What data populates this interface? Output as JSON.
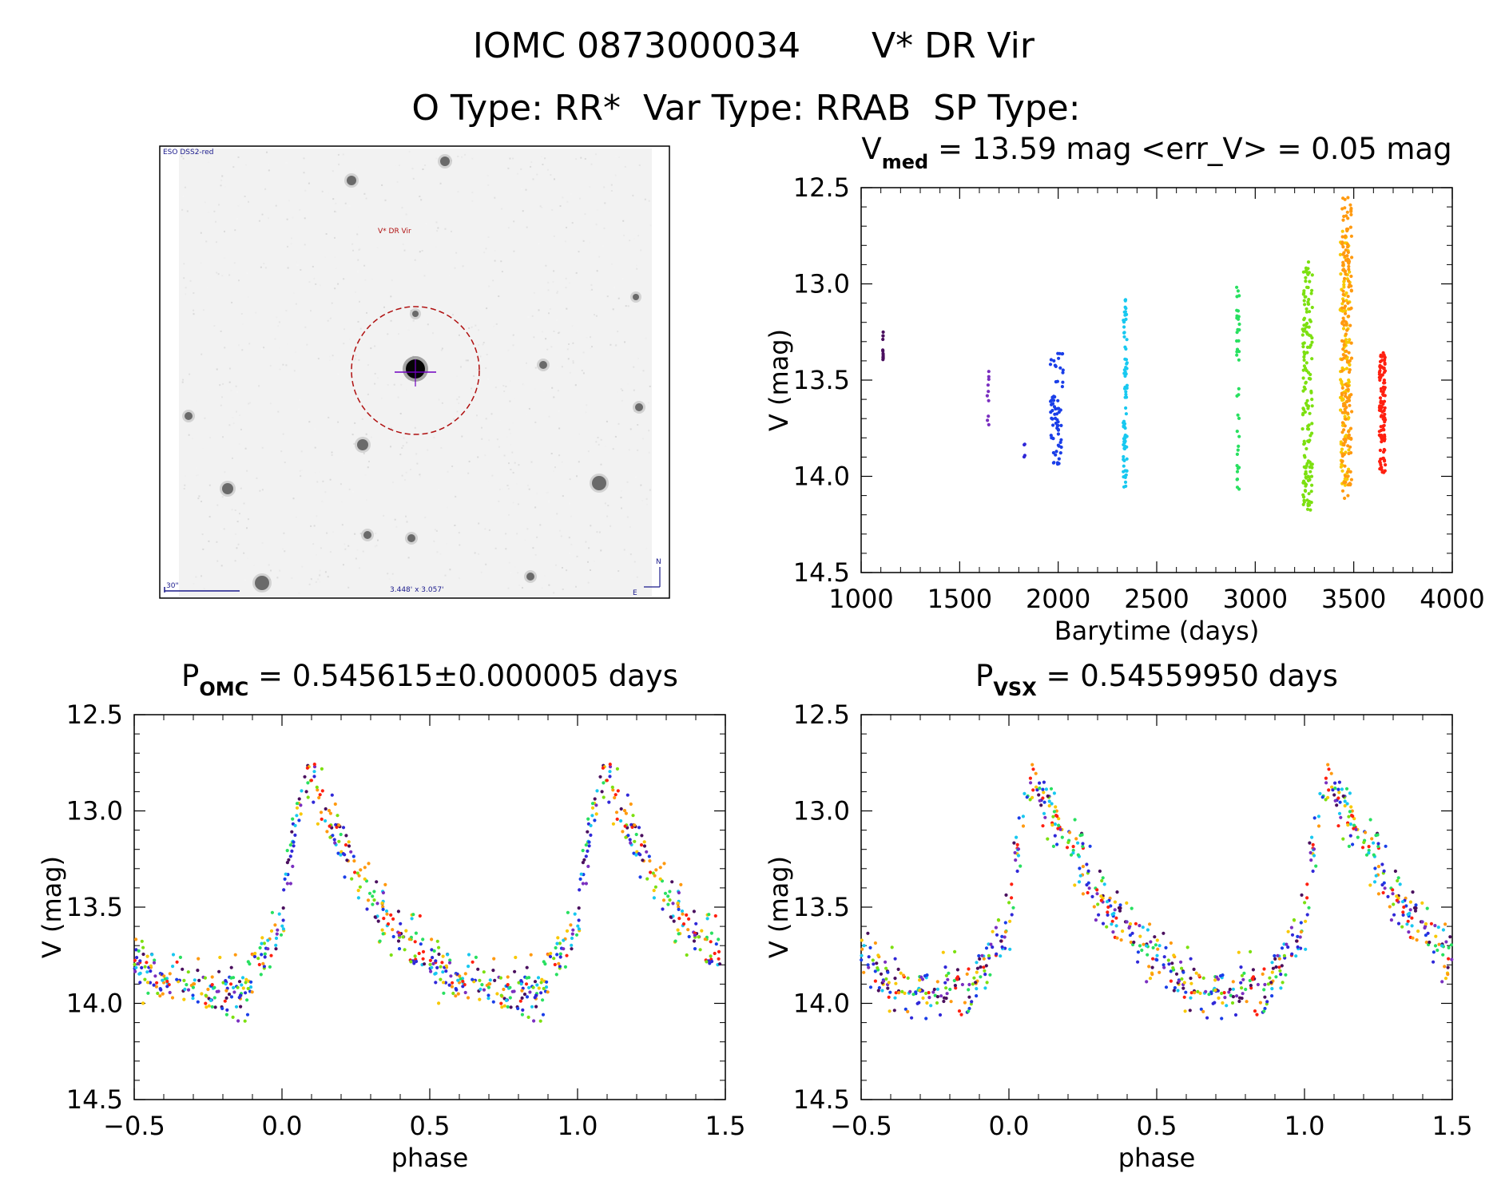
{
  "header": {
    "title_id": "IOMC 0873000034",
    "title_name": "V* DR Vir",
    "subtitle": "O Type: RR*  Var Type: RRAB  SP Type:"
  },
  "image_panel": {
    "survey_label": "ESO DSS2-red",
    "object_label": "V* DR Vir",
    "scale_label": "30\"",
    "size_label": "3.448' x 3.057'",
    "north_label": "N",
    "east_label": "E"
  },
  "colors": {
    "epochs": [
      "#4a0f5e",
      "#7a2fc0",
      "#3028d8",
      "#1a3ee8",
      "#18c8f0",
      "#28e060",
      "#7ce010",
      "#ff9a10",
      "#f8c800",
      "#ff2010"
    ],
    "circle": "#b01010",
    "crosshair": "#7000c0"
  },
  "chart_data": [
    {
      "id": "lightcurve",
      "type": "scatter",
      "title_prefix": "V",
      "title_sub": "med",
      "title_suffix": " = 13.59 mag <err_V> = 0.05 mag",
      "xlabel": "Barytime (days)",
      "ylabel": "V (mag)",
      "xlim": [
        1000,
        4000
      ],
      "ylim": [
        14.5,
        12.5
      ],
      "xticks": [
        1000,
        1500,
        2000,
        2500,
        3000,
        3500,
        4000
      ],
      "yticks": [
        12.5,
        13.0,
        13.5,
        14.0,
        14.5
      ],
      "xtick_labels": [
        "1000",
        "1500",
        "2000",
        "2500",
        "3000",
        "3500",
        "4000"
      ],
      "ytick_labels": [
        "12.5",
        "13.0",
        "13.5",
        "14.0",
        "14.5"
      ],
      "epochs": [
        {
          "color": 0,
          "t": [
            1110,
            1112
          ],
          "n": 12,
          "v": [
            13.25,
            13.4
          ]
        },
        {
          "color": 1,
          "t": [
            1640,
            1648
          ],
          "n": 10,
          "v": [
            13.45,
            13.75
          ]
        },
        {
          "color": 2,
          "t": [
            1825,
            1835
          ],
          "n": 4,
          "v": [
            13.82,
            13.9
          ]
        },
        {
          "color": 3,
          "t": [
            1960,
            2025
          ],
          "n": 70,
          "v": [
            13.36,
            13.95
          ]
        },
        {
          "color": 4,
          "t": [
            2330,
            2350
          ],
          "n": 80,
          "v": [
            13.07,
            14.06
          ]
        },
        {
          "color": 5,
          "t": [
            2905,
            2920
          ],
          "n": 40,
          "v": [
            13.0,
            14.07
          ]
        },
        {
          "color": 6,
          "t": [
            3240,
            3290
          ],
          "n": 160,
          "v": [
            12.88,
            14.18
          ]
        },
        {
          "color": 8,
          "t": [
            3430,
            3480
          ],
          "n": 120,
          "v": [
            12.72,
            14.05
          ]
        },
        {
          "color": 7,
          "t": [
            3440,
            3490
          ],
          "n": 170,
          "v": [
            12.55,
            14.12
          ]
        },
        {
          "color": 9,
          "t": [
            3630,
            3660
          ],
          "n": 110,
          "v": [
            13.35,
            13.98
          ]
        }
      ]
    },
    {
      "id": "phase_omc",
      "type": "scatter",
      "title_prefix": "P",
      "title_sub": "OMC",
      "title_suffix": " = 0.545615±0.000005 days",
      "xlabel": "phase",
      "ylabel": "V (mag)",
      "xlim": [
        -0.5,
        1.5
      ],
      "ylim": [
        14.5,
        12.5
      ],
      "xticks": [
        -0.5,
        0.0,
        0.5,
        1.0,
        1.5
      ],
      "yticks": [
        12.5,
        13.0,
        13.5,
        14.0,
        14.5
      ],
      "xtick_labels": [
        "−0.5",
        "0.0",
        "0.5",
        "1.0",
        "1.5"
      ],
      "ytick_labels": [
        "12.5",
        "13.0",
        "13.5",
        "14.0",
        "14.5"
      ],
      "template_phase": [
        0.0,
        0.02,
        0.06,
        0.09,
        0.12,
        0.2,
        0.3,
        0.45,
        0.6,
        0.75,
        0.88,
        1.0
      ],
      "template_mag": [
        13.6,
        13.3,
        12.95,
        12.75,
        12.95,
        13.15,
        13.45,
        13.7,
        13.88,
        13.95,
        13.9,
        13.6
      ],
      "scatter": 0.07,
      "points_per_cycle": 380
    },
    {
      "id": "phase_vsx",
      "type": "scatter",
      "title_prefix": "P",
      "title_sub": "VSX",
      "title_suffix": " = 0.54559950 days",
      "xlabel": "phase",
      "ylabel": "V (mag)",
      "xlim": [
        -0.5,
        1.5
      ],
      "ylim": [
        14.5,
        12.5
      ],
      "xticks": [
        -0.5,
        0.0,
        0.5,
        1.0,
        1.5
      ],
      "yticks": [
        12.5,
        13.0,
        13.5,
        14.0,
        14.5
      ],
      "xtick_labels": [
        "−0.5",
        "0.0",
        "0.5",
        "1.0",
        "1.5"
      ],
      "ytick_labels": [
        "12.5",
        "13.0",
        "13.5",
        "14.0",
        "14.5"
      ],
      "template_phase": [
        0.0,
        0.02,
        0.06,
        0.09,
        0.12,
        0.2,
        0.3,
        0.45,
        0.6,
        0.75,
        0.88,
        1.0
      ],
      "template_mag": [
        13.6,
        13.3,
        12.95,
        12.75,
        12.95,
        13.15,
        13.45,
        13.7,
        13.88,
        13.95,
        13.9,
        13.6
      ],
      "scatter": 0.08,
      "points_per_cycle": 380
    }
  ]
}
